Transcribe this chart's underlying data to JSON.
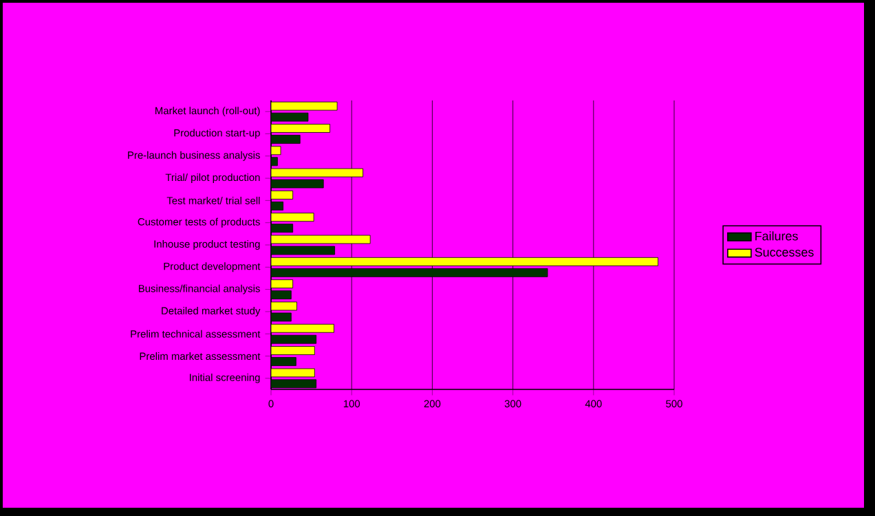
{
  "chart_data": {
    "type": "bar",
    "orientation": "horizontal",
    "categories": [
      "Market launch (roll-out)",
      "Production start-up",
      "Pre-launch business analysis",
      "Trial/ pilot production",
      "Test market/ trial sell",
      "Customer tests of products",
      "Inhouse product testing",
      "Product development",
      "Business/financial analysis",
      "Detailed market study",
      "Prelim technical assessment",
      "Prelim market assessment",
      "Initial screening"
    ],
    "series": [
      {
        "name": "Failures",
        "color": "#003300",
        "values": [
          46,
          36,
          8,
          65,
          15,
          27,
          79,
          343,
          25,
          25,
          56,
          31,
          56
        ]
      },
      {
        "name": "Successes",
        "color": "#ffff00",
        "values": [
          82,
          73,
          12,
          114,
          27,
          53,
          123,
          480,
          27,
          32,
          78,
          54,
          54
        ]
      }
    ],
    "xlim": [
      0,
      500
    ],
    "xticks": [
      0,
      100,
      200,
      300,
      400,
      500
    ],
    "grid": "x",
    "legend": "right"
  }
}
